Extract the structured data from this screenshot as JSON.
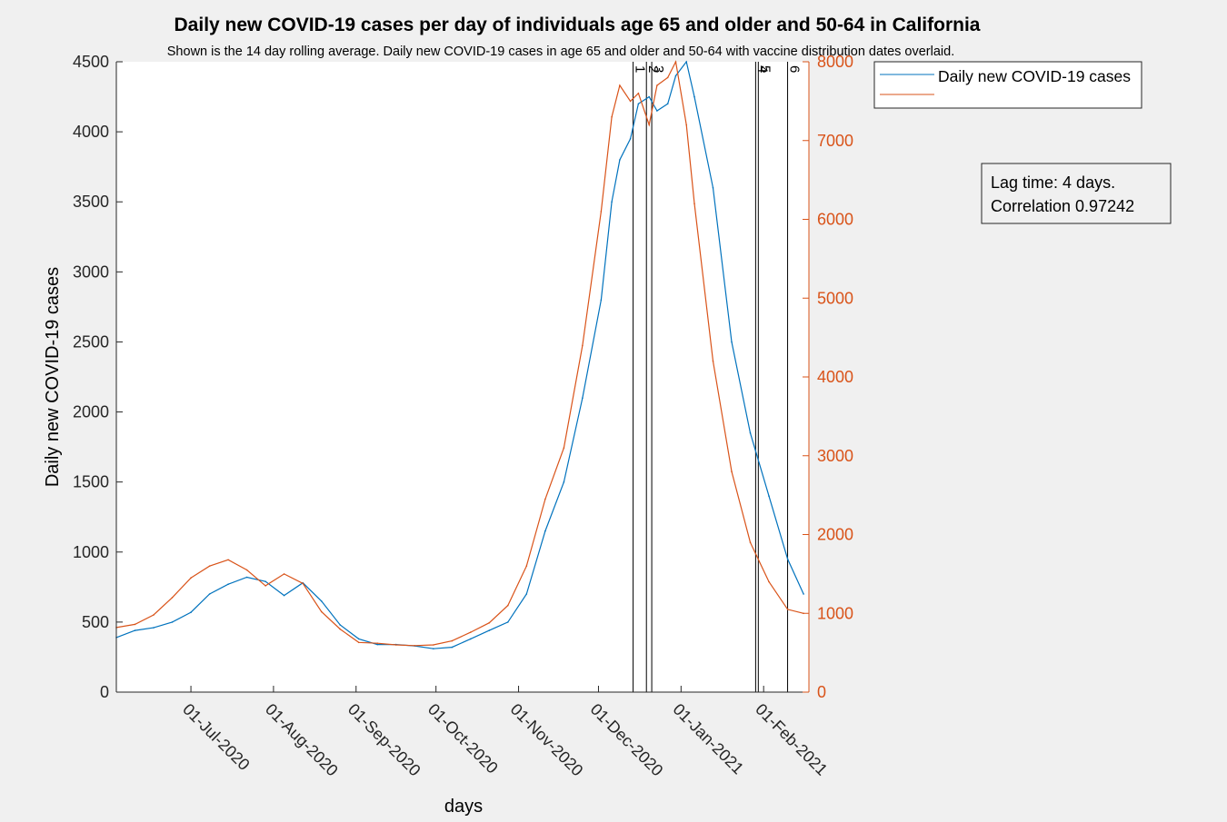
{
  "chart_data": {
    "type": "line",
    "title": "Daily new COVID-19 cases per day of individuals age 65 and older and 50-64 in California",
    "subtitle": "Shown is the 14 day rolling average. Daily new COVID-19 cases in age 65 and older and 50-64 with vaccine distribution dates overlaid.",
    "xlabel": "days",
    "ylabel": "Daily new COVID-19 cases",
    "xlim": [
      "2020-06-03",
      "2021-02-18"
    ],
    "ylim_left": [
      0,
      4500
    ],
    "ylim_right": [
      0,
      8000
    ],
    "left_ticks": [
      0,
      500,
      1000,
      1500,
      2000,
      2500,
      3000,
      3500,
      4000,
      4500
    ],
    "right_ticks": [
      0,
      1000,
      2000,
      3000,
      4000,
      5000,
      6000,
      7000,
      8000
    ],
    "x_ticks": [
      "01-Jul-2020",
      "01-Aug-2020",
      "01-Sep-2020",
      "01-Oct-2020",
      "01-Nov-2020",
      "01-Dec-2020",
      "01-Jan-2021",
      "01-Feb-2021"
    ],
    "x_tick_dates": [
      "2020-07-01",
      "2020-08-01",
      "2020-09-01",
      "2020-10-01",
      "2020-11-01",
      "2020-12-01",
      "2021-01-01",
      "2021-02-01"
    ],
    "grid": false,
    "legend_position": "top-right",
    "colors": {
      "series1": "#0072BD",
      "series2": "#D95319",
      "vlines": "#000000",
      "right_axis": "#D95319"
    },
    "series": [
      {
        "name": "Daily new COVID-19 cases",
        "axis": "left",
        "color": "#0072BD",
        "x": [
          "2020-06-03",
          "2020-06-10",
          "2020-06-17",
          "2020-06-24",
          "2020-07-01",
          "2020-07-08",
          "2020-07-15",
          "2020-07-22",
          "2020-07-29",
          "2020-08-05",
          "2020-08-12",
          "2020-08-19",
          "2020-08-26",
          "2020-09-02",
          "2020-09-09",
          "2020-09-16",
          "2020-09-23",
          "2020-09-30",
          "2020-10-07",
          "2020-10-14",
          "2020-10-21",
          "2020-10-28",
          "2020-11-04",
          "2020-11-11",
          "2020-11-18",
          "2020-11-25",
          "2020-12-02",
          "2020-12-06",
          "2020-12-09",
          "2020-12-13",
          "2020-12-16",
          "2020-12-20",
          "2020-12-23",
          "2020-12-27",
          "2020-12-30",
          "2021-01-03",
          "2021-01-06",
          "2021-01-13",
          "2021-01-20",
          "2021-01-27",
          "2021-02-03",
          "2021-02-10",
          "2021-02-16"
        ],
        "values": [
          390,
          440,
          460,
          500,
          570,
          700,
          770,
          820,
          790,
          690,
          780,
          650,
          480,
          380,
          340,
          340,
          330,
          310,
          320,
          380,
          440,
          500,
          700,
          1150,
          1500,
          2100,
          2800,
          3500,
          3800,
          3950,
          4200,
          4250,
          4150,
          4200,
          4400,
          4500,
          4250,
          3600,
          2500,
          1850,
          1400,
          950,
          700
        ]
      },
      {
        "name": "",
        "axis": "right",
        "color": "#D95319",
        "x": [
          "2020-06-03",
          "2020-06-10",
          "2020-06-17",
          "2020-06-24",
          "2020-07-01",
          "2020-07-08",
          "2020-07-15",
          "2020-07-22",
          "2020-07-29",
          "2020-08-05",
          "2020-08-12",
          "2020-08-19",
          "2020-08-26",
          "2020-09-02",
          "2020-09-09",
          "2020-09-16",
          "2020-09-23",
          "2020-09-30",
          "2020-10-07",
          "2020-10-14",
          "2020-10-21",
          "2020-10-28",
          "2020-11-04",
          "2020-11-11",
          "2020-11-18",
          "2020-11-25",
          "2020-12-02",
          "2020-12-06",
          "2020-12-09",
          "2020-12-13",
          "2020-12-16",
          "2020-12-20",
          "2020-12-23",
          "2020-12-27",
          "2020-12-30",
          "2021-01-03",
          "2021-01-06",
          "2021-01-13",
          "2021-01-20",
          "2021-01-27",
          "2021-02-03",
          "2021-02-10",
          "2021-02-16"
        ],
        "values": [
          820,
          860,
          980,
          1200,
          1450,
          1600,
          1680,
          1550,
          1350,
          1500,
          1380,
          1020,
          800,
          630,
          620,
          600,
          590,
          600,
          650,
          760,
          880,
          1100,
          1600,
          2450,
          3100,
          4400,
          6100,
          7300,
          7700,
          7500,
          7600,
          7200,
          7700,
          7800,
          8000,
          7200,
          6200,
          4200,
          2800,
          1900,
          1400,
          1050,
          1000
        ]
      }
    ],
    "vlines": [
      {
        "label": "1",
        "date": "2020-12-14"
      },
      {
        "label": "2",
        "date": "2020-12-19"
      },
      {
        "label": "3",
        "date": "2020-12-21"
      },
      {
        "label": "4",
        "date": "2021-01-29"
      },
      {
        "label": "5",
        "date": "2021-01-30"
      },
      {
        "label": "6",
        "date": "2021-02-10"
      }
    ]
  },
  "legend": {
    "entries": [
      "Daily new COVID-19 cases",
      ""
    ]
  },
  "annotation": {
    "line1": "Lag time: 4 days.",
    "line2": "Correlation 0.97242"
  }
}
